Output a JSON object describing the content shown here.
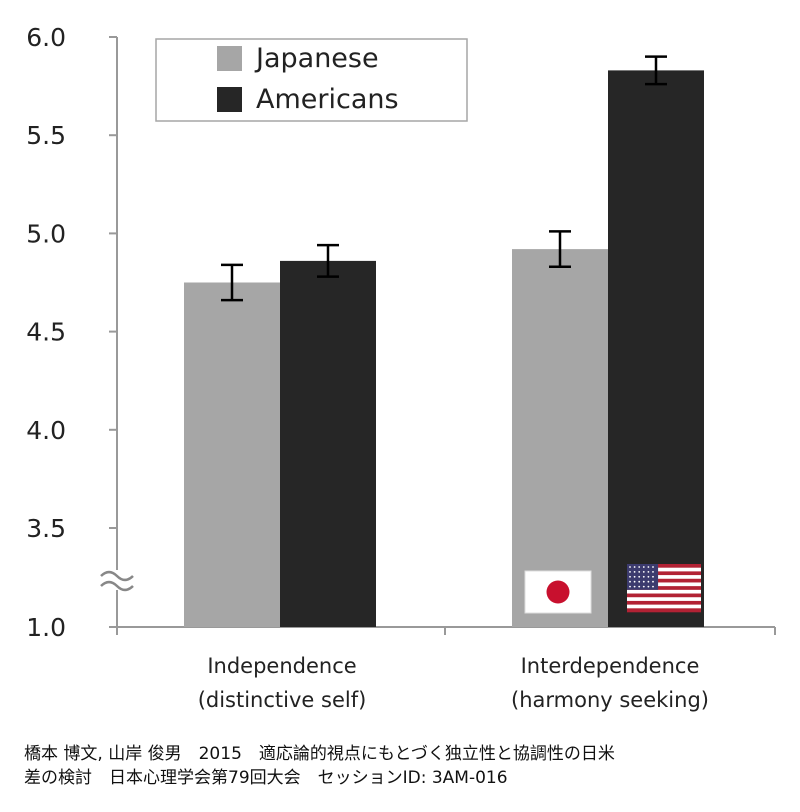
{
  "chart_data": {
    "type": "bar",
    "categories": [
      {
        "line1": "Independence",
        "line2": "(distinctive self)"
      },
      {
        "line1": "Interdependence",
        "line2": "(harmony seeking)"
      }
    ],
    "series": [
      {
        "name": "Japanese",
        "color": "#a6a6a6",
        "values": [
          4.75,
          4.92
        ],
        "errors": [
          0.09,
          0.09
        ]
      },
      {
        "name": "Americans",
        "color": "#262626",
        "values": [
          4.86,
          5.83
        ],
        "errors": [
          0.08,
          0.07
        ]
      }
    ],
    "yticks": [
      "1.0",
      "3.5",
      "4.0",
      "4.5",
      "5.0",
      "5.5",
      "6.0"
    ],
    "ylim": [
      3.5,
      6.0
    ],
    "y_axis_break": true,
    "y_break_base": "1.0",
    "legend_position": "top-left",
    "grid": false,
    "annotations": [
      "japan-flag-icon",
      "usa-flag-icon"
    ]
  },
  "caption": {
    "line1": "橋本 博文, 山岸 俊男　2015　適応論的視点にもとづく独立性と協調性の日米",
    "line2": "差の検討　日本心理学会第79回大会　セッションID: 3AM-016"
  }
}
